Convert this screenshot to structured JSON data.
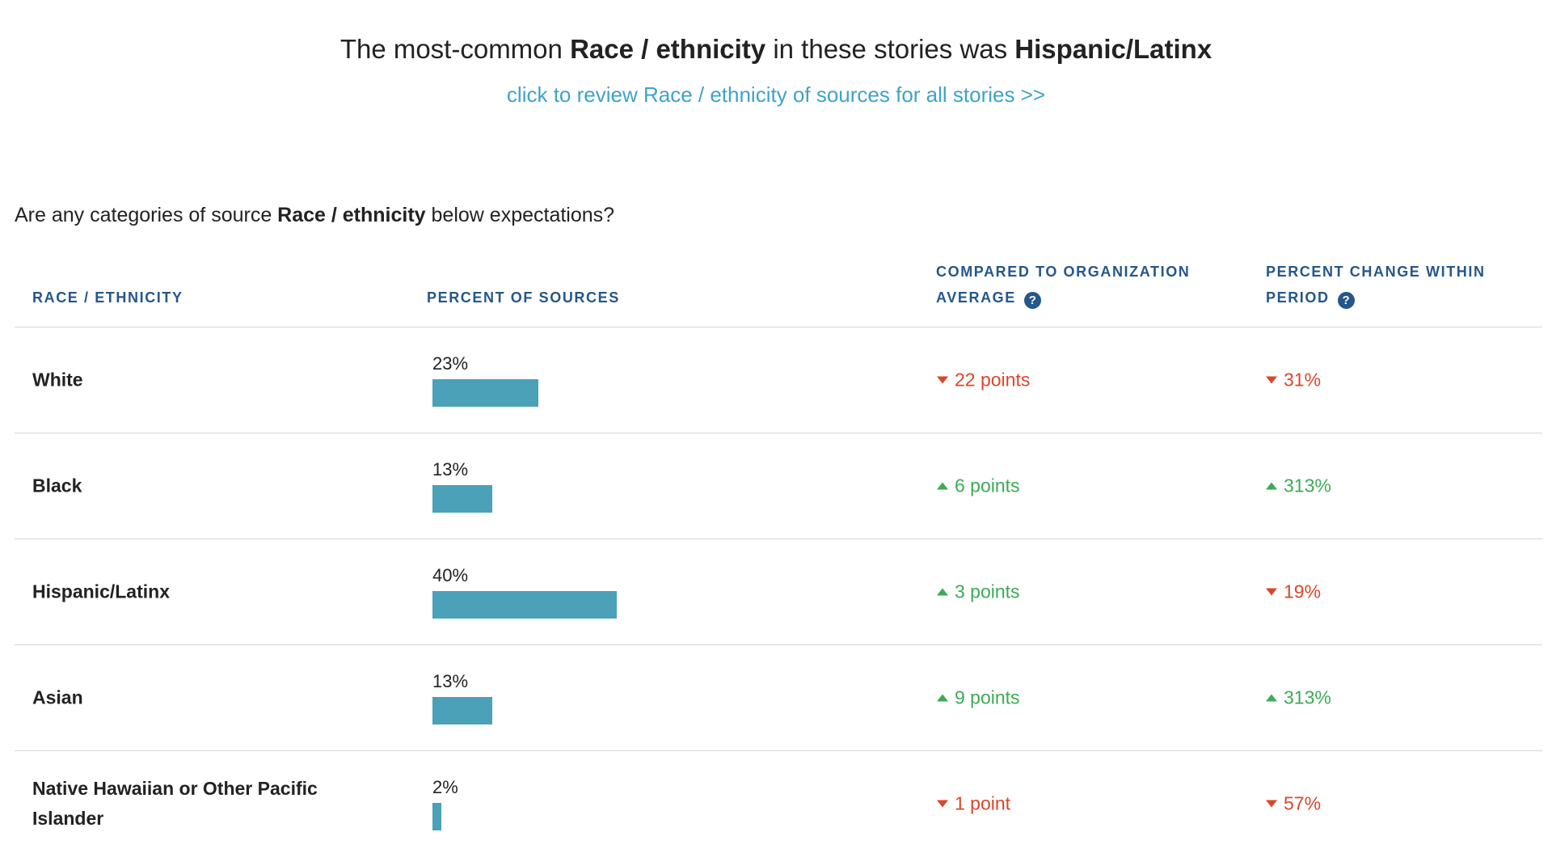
{
  "headline": {
    "prefix": "The most-common ",
    "category": "Race / ethnicity",
    "middle": " in these stories was ",
    "value": "Hispanic/Latinx"
  },
  "review_link": "click to review Race / ethnicity of sources for all stories >>",
  "question": {
    "prefix": "Are any categories of source ",
    "category": "Race / ethnicity",
    "suffix": " below expectations?"
  },
  "columns": {
    "race": "RACE / ETHNICITY",
    "percent": "PERCENT OF SOURCES",
    "compared": "COMPARED TO ORGANIZATION AVERAGE",
    "change": "PERCENT CHANGE WITHIN PERIOD"
  },
  "help_glyph": "?",
  "colors": {
    "bar": "#4aa1b8",
    "down": "#d9472b",
    "up": "#3cab55",
    "header": "#24578a",
    "link": "#3ea3c9"
  },
  "rows": [
    {
      "name": "White",
      "percent_label": "23%",
      "percent": 23,
      "compared": {
        "direction": "down",
        "text": "22 points"
      },
      "change": {
        "direction": "down",
        "text": "31%"
      }
    },
    {
      "name": "Black",
      "percent_label": "13%",
      "percent": 13,
      "compared": {
        "direction": "up",
        "text": "6 points"
      },
      "change": {
        "direction": "up",
        "text": "313%"
      }
    },
    {
      "name": "Hispanic/Latinx",
      "percent_label": "40%",
      "percent": 40,
      "compared": {
        "direction": "up",
        "text": "3 points"
      },
      "change": {
        "direction": "down",
        "text": "19%"
      }
    },
    {
      "name": "Asian",
      "percent_label": "13%",
      "percent": 13,
      "compared": {
        "direction": "up",
        "text": "9 points"
      },
      "change": {
        "direction": "up",
        "text": "313%"
      }
    },
    {
      "name": "Native Hawaiian or Other Pacific Islander",
      "percent_label": "2%",
      "percent": 2,
      "compared": {
        "direction": "down",
        "text": "1 point"
      },
      "change": {
        "direction": "down",
        "text": "57%"
      }
    }
  ]
}
